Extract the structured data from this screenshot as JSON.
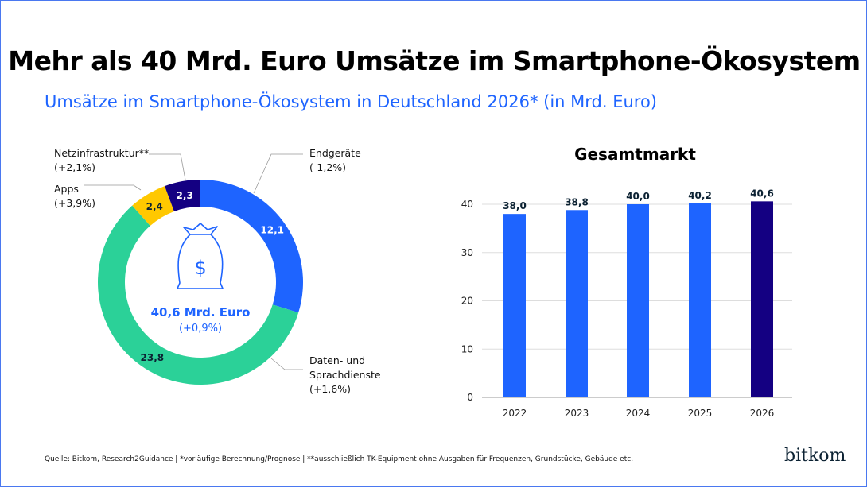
{
  "title": "Mehr als 40 Mrd. Euro Umsätze im Smartphone-Ökosystem",
  "subtitle": "Umsätze im Smartphone-Ökosystem in Deutschland 2026* (in Mrd. Euro)",
  "footer": "Quelle: Bitkom, Research2Guidance  | *vorläufige Berechnung/Prognose | **ausschließlich TK-Equipment ohne Ausgaben für Frequenzen, Grundstücke, Gebäude etc.",
  "logo": "bitkom",
  "colors": {
    "endgeraete": "#1e64ff",
    "daten": "#2bd198",
    "apps": "#ffc800",
    "netz": "#140082",
    "text_accent": "#1e64ff"
  },
  "chart_data": [
    {
      "type": "pie",
      "donut": true,
      "center_icon": "money-bag-icon",
      "center_value": "40,6 Mrd. Euro",
      "center_change": "(+0,9%)",
      "slices": [
        {
          "name": "Endgeräte",
          "value": 12.1,
          "label": "12,1",
          "change": "(-1,2%)"
        },
        {
          "name": "Daten- und Sprachdienste",
          "value": 23.8,
          "label": "23,8",
          "change": "(+1,6%)"
        },
        {
          "name": "Apps",
          "value": 2.4,
          "label": "2,4",
          "change": "(+3,9%)"
        },
        {
          "name": "Netzinfrastruktur**",
          "value": 2.3,
          "label": "2,3",
          "change": "(+2,1%)"
        }
      ]
    },
    {
      "type": "bar",
      "title": "Gesamtmarkt",
      "categories": [
        "2022",
        "2023",
        "2024",
        "2025",
        "2026"
      ],
      "values": [
        38.0,
        38.8,
        40.0,
        40.2,
        40.6
      ],
      "labels": [
        "38,0",
        "38,8",
        "40,0",
        "40,2",
        "40,6"
      ],
      "yticks": [
        0,
        10,
        20,
        30,
        40
      ],
      "ylim": [
        0,
        45
      ],
      "grid": true,
      "highlight": "2026"
    }
  ]
}
